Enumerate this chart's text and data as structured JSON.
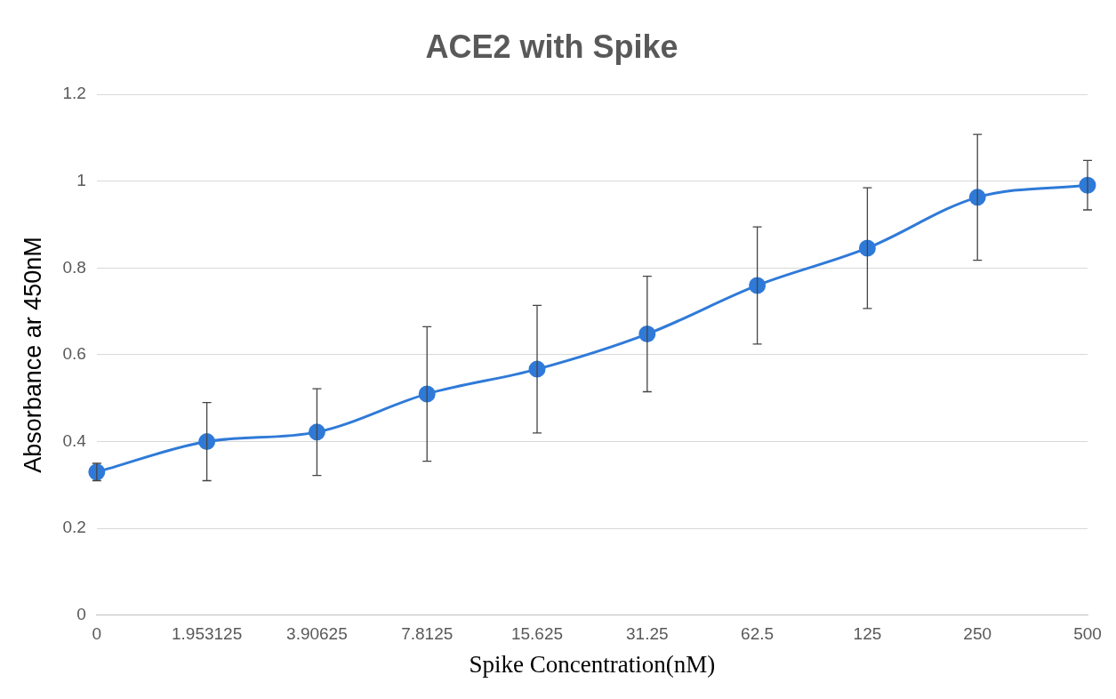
{
  "chart_data": {
    "type": "line",
    "title": "ACE2 with Spike",
    "xlabel": "Spike Concentration(nM)",
    "ylabel": "Absorbance ar 450nM",
    "categories": [
      "0",
      "1.953125",
      "3.90625",
      "7.8125",
      "15.625",
      "31.25",
      "62.5",
      "125",
      "250",
      "500"
    ],
    "series": [
      {
        "color": "#2f7ad8",
        "values": [
          0.33,
          0.4,
          0.422,
          0.51,
          0.567,
          0.648,
          0.76,
          0.846,
          0.963,
          0.991
        ],
        "errors": [
          0.02,
          0.09,
          0.1,
          0.155,
          0.147,
          0.133,
          0.135,
          0.139,
          0.145,
          0.057
        ]
      }
    ],
    "ylim": [
      0,
      1.2
    ],
    "yticks": [
      0,
      0.2,
      0.4,
      0.6,
      0.8,
      1,
      1.2
    ],
    "grid": "y",
    "legend": false,
    "marker": "circle",
    "line_style": "solid"
  }
}
